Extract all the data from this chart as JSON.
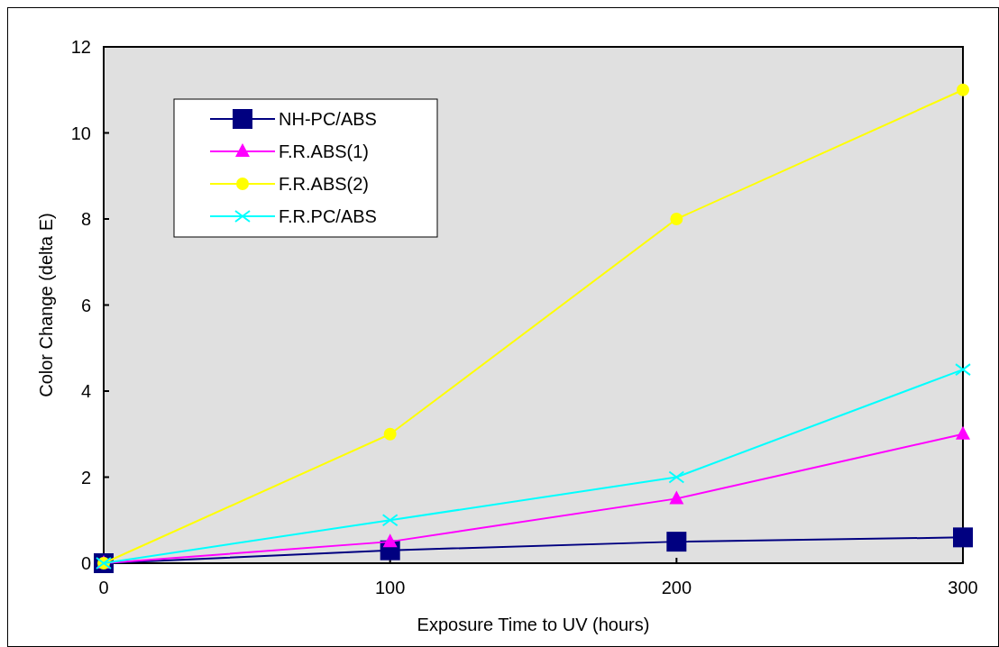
{
  "chart_data": {
    "type": "line",
    "xlabel": "Exposure Time to UV (hours)",
    "ylabel": "Color Change (delta E)",
    "x": [
      0,
      100,
      200,
      300
    ],
    "xlim": [
      0,
      300
    ],
    "xticks": [
      0,
      100,
      200,
      300
    ],
    "ylim": [
      0,
      12
    ],
    "yticks": [
      0,
      2,
      4,
      6,
      8,
      10,
      12
    ],
    "grid": false,
    "legend": "top left",
    "series": [
      {
        "name": "NH-PC/ABS",
        "color": "#000080",
        "marker": "square",
        "values": [
          0,
          0.3,
          0.5,
          0.6
        ]
      },
      {
        "name": "F.R.ABS(1)",
        "color": "#ff00ff",
        "marker": "triangle",
        "values": [
          0,
          0.5,
          1.5,
          3.0
        ]
      },
      {
        "name": "F.R.ABS(2)",
        "color": "#ffff00",
        "marker": "circle",
        "values": [
          0,
          3.0,
          8.0,
          11.0
        ]
      },
      {
        "name": "F.R.PC/ABS",
        "color": "#00ffff",
        "marker": "cross",
        "values": [
          0,
          1.0,
          2.0,
          4.5
        ]
      }
    ]
  }
}
